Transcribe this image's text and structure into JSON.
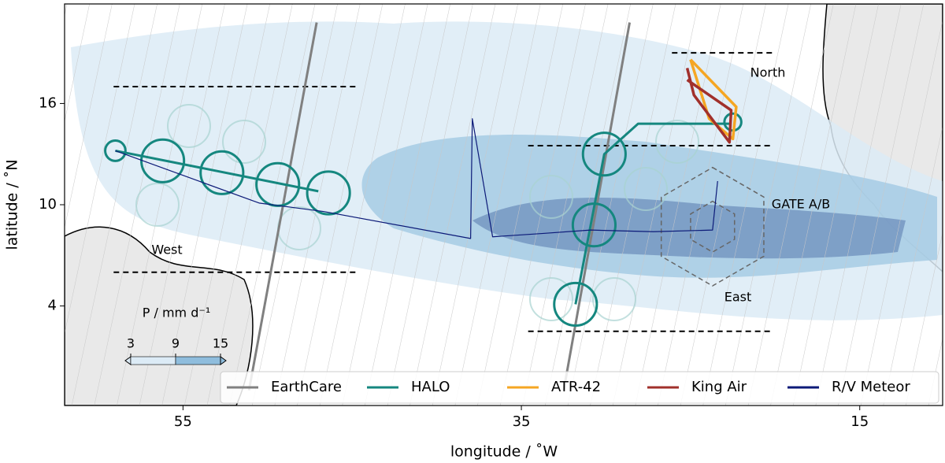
{
  "chart_data": {
    "type": "map",
    "xlabel": "longitude / ˚W",
    "ylabel": "latitude / ˚N",
    "xlim": [
      62.0,
      10.1
    ],
    "ylim": [
      -1.9,
      21.9
    ],
    "xticks": [
      55,
      35,
      15
    ],
    "yticks": [
      4,
      10,
      16
    ],
    "series": [
      {
        "name": "EarthCare",
        "color": "#808080",
        "tracks": [
          {
            "lon": [
              47.1,
              51.1
            ],
            "lat": [
              20.8,
              -1.0
            ]
          },
          {
            "lon": [
              28.6,
              32.5
            ],
            "lat": [
              20.8,
              -1.0
            ]
          }
        ]
      },
      {
        "name": "HALO",
        "color": "#15877f",
        "tracks": [
          {
            "lon": [
              59.0,
              47.0
            ],
            "lat": [
              13.2,
              10.8
            ]
          },
          {
            "lon": [
              31.8,
              30.1,
              28.1,
              22.6
            ],
            "lat": [
              4.1,
              13.0,
              14.8,
              14.8
            ]
          }
        ],
        "circles": [
          {
            "lon": 59.0,
            "lat": 13.2,
            "r": 0.6
          },
          {
            "lon": 56.2,
            "lat": 12.6,
            "r": 1.26
          },
          {
            "lon": 52.7,
            "lat": 11.9,
            "r": 1.26
          },
          {
            "lon": 49.4,
            "lat": 11.2,
            "r": 1.26
          },
          {
            "lon": 46.4,
            "lat": 10.7,
            "r": 1.26
          },
          {
            "lon": 30.1,
            "lat": 13.0,
            "r": 1.26
          },
          {
            "lon": 30.7,
            "lat": 8.8,
            "r": 1.26
          },
          {
            "lon": 31.8,
            "lat": 4.1,
            "r": 1.26
          },
          {
            "lon": 22.5,
            "lat": 14.9,
            "r": 0.5
          }
        ]
      },
      {
        "name": "ATR-42",
        "color": "#f5a623",
        "tracks": [
          {
            "lon": [
              25.0,
              22.3,
              22.5,
              23.9,
              25.0
            ],
            "lat": [
              18.6,
              15.8,
              13.9,
              15.1,
              18.6
            ]
          }
        ]
      },
      {
        "name": "King Air",
        "color": "#a1302b",
        "tracks": [
          {
            "lon": [
              25.2,
              24.8,
              22.7,
              22.6,
              25.2
            ],
            "lat": [
              18.1,
              16.5,
              13.7,
              15.6,
              17.4
            ]
          }
        ]
      },
      {
        "name": "R/V Meteor",
        "color": "#0c1a78",
        "tracks": [
          {
            "lon": [
              59.0,
              50.5,
              46.7,
              38.0,
              37.9,
              36.7,
              33.7,
              30.9,
              27.2,
              23.7,
              23.4
            ],
            "lat": [
              13.2,
              10.1,
              9.6,
              8.0,
              15.1,
              8.1,
              8.3,
              8.5,
              8.4,
              8.5,
              11.4
            ]
          }
        ]
      }
    ],
    "box_edges": [
      {
        "lon": [
          59.1,
          44.6
        ],
        "lat": 17.0
      },
      {
        "lon": [
          59.1,
          44.6
        ],
        "lat": 6.0
      },
      {
        "lon": [
          26.1,
          20.1
        ],
        "lat": 19.0
      },
      {
        "lon": [
          34.6,
          20.1
        ],
        "lat": 13.5
      },
      {
        "lon": [
          34.6,
          20.1
        ],
        "lat": 2.5
      }
    ],
    "gate_hexagons": [
      {
        "lon": 23.7,
        "lat": 8.7,
        "r": 3.5
      },
      {
        "lon": 23.7,
        "lat": 8.7,
        "r": 1.5
      }
    ],
    "regions": [
      "West",
      "North",
      "East",
      "GATE A/B"
    ],
    "colorbar": {
      "label": "P / mm d⁻¹",
      "clim": [
        3,
        15
      ],
      "ticks": [
        3,
        9,
        15
      ],
      "colors": [
        "#dcebf6",
        "#8fbddd"
      ]
    }
  }
}
